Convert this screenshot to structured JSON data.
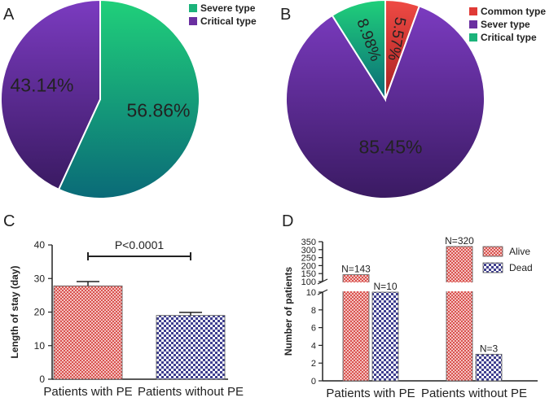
{
  "chart_data": [
    {
      "panel": "A",
      "type": "pie",
      "slices": [
        {
          "label": "Severe type",
          "value": 56.86,
          "display": "56.86%",
          "color": "#1bb37a"
        },
        {
          "label": "Critical type",
          "value": 43.14,
          "display": "43.14%",
          "color": "#6a2fa0"
        }
      ],
      "legend_position": "top-right"
    },
    {
      "panel": "B",
      "type": "pie",
      "slices": [
        {
          "label": "Common type",
          "value": 5.57,
          "display": "5.57%",
          "color": "#e03a36"
        },
        {
          "label": "Sever type",
          "value": 85.45,
          "display": "85.45%",
          "color": "#6a2fa0"
        },
        {
          "label": "Critical type",
          "value": 8.98,
          "display": "8.98%",
          "color": "#1bb37a"
        }
      ],
      "legend_position": "top-right"
    },
    {
      "panel": "C",
      "type": "bar",
      "categories": [
        "Patients with PE",
        "Patients without PE"
      ],
      "values": [
        27.8,
        19.0
      ],
      "errors": [
        1.3,
        0.9
      ],
      "ylabel": "Length of stay (day)",
      "ylim": [
        0,
        40
      ],
      "yticks": [
        0,
        10,
        20,
        30,
        40
      ],
      "annotation": "P<0.0001",
      "bar_colors": [
        "#d9534f",
        "#3f3f8f"
      ]
    },
    {
      "panel": "D",
      "type": "bar",
      "categories": [
        "Patients with PE",
        "Patients without PE"
      ],
      "series": [
        {
          "name": "Alive",
          "values": [
            143,
            320
          ],
          "labels": [
            "N=143",
            "N=320"
          ],
          "color": "#d9534f"
        },
        {
          "name": "Dead",
          "values": [
            10,
            3
          ],
          "labels": [
            "N=10",
            "N=3"
          ],
          "color": "#3f3f8f"
        }
      ],
      "ylabel": "Number of patients",
      "axis_break": [
        10,
        100
      ],
      "ylim_lower": [
        0,
        10
      ],
      "ylim_upper": [
        100,
        350
      ],
      "yticks_lower": [
        0,
        2,
        4,
        6,
        8,
        10
      ],
      "yticks_upper": [
        100,
        150,
        200,
        250,
        300,
        350
      ],
      "legend_position": "top-right"
    }
  ]
}
